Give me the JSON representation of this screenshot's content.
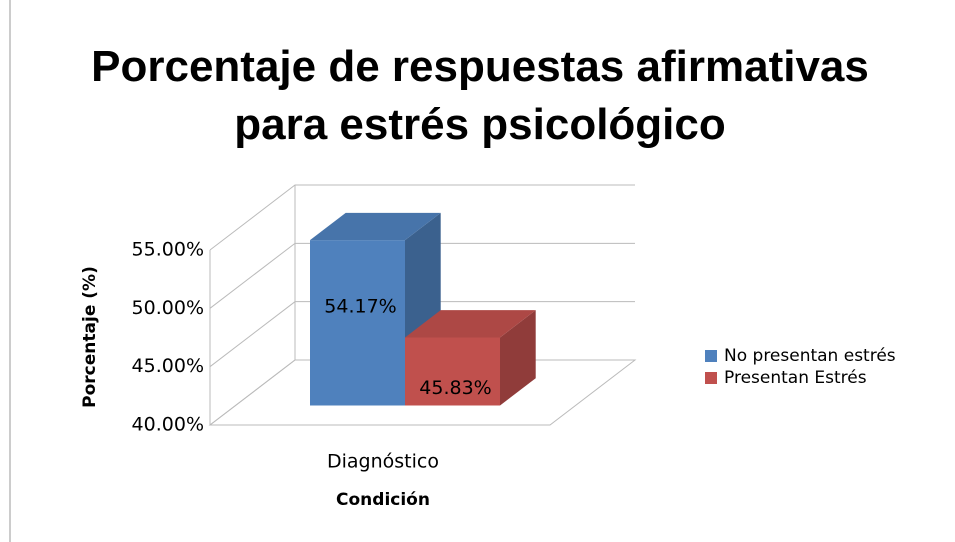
{
  "chart_data": {
    "type": "bar3d",
    "title": "Porcentaje de respuestas afirmativas para estrés psicológico",
    "xlabel": "Condición",
    "ylabel": "Porcentaje (%)",
    "categories": [
      "Diagnóstico"
    ],
    "series": [
      {
        "name": "No presentan estrés",
        "color": "#4f81bd",
        "values": [
          54.17
        ],
        "value_labels": [
          "54.17%"
        ]
      },
      {
        "name": "Presentan Estrés",
        "color": "#c0504d",
        "values": [
          45.83
        ],
        "value_labels": [
          "45.83%"
        ]
      }
    ],
    "ylim": [
      40,
      55
    ],
    "yticks": [
      {
        "value": 40,
        "label": "40.00%"
      },
      {
        "value": 45,
        "label": "45.00%"
      },
      {
        "value": 50,
        "label": "50.00%"
      },
      {
        "value": 55,
        "label": "55.00%"
      }
    ],
    "grid": true,
    "legend": "right"
  }
}
